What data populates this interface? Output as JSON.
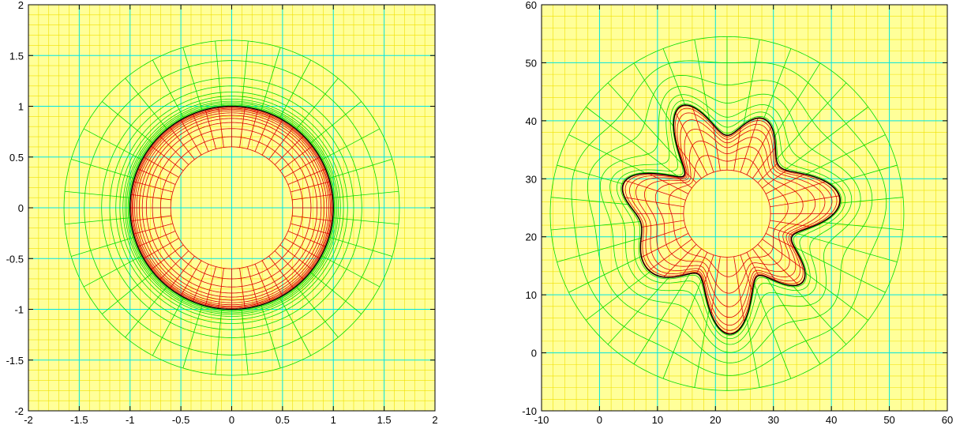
{
  "colors": {
    "background": "#ffffff",
    "plot_bg": "#ffff99",
    "minor_grid": "#f0e000",
    "major_grid": "#00e5e5",
    "inner_mesh": "#e00000",
    "outer_mesh": "#00dd00",
    "interface": "#000000"
  },
  "chart_data": [
    {
      "type": "mesh",
      "title": "",
      "xlabel": "",
      "ylabel": "",
      "xlim": [
        -2,
        2
      ],
      "ylim": [
        -2,
        2
      ],
      "xticks": [
        -2,
        -1.5,
        -1,
        -0.5,
        0,
        0.5,
        1,
        1.5,
        2
      ],
      "yticks": [
        -2,
        -1.5,
        -1,
        -0.5,
        0,
        0.5,
        1,
        1.5,
        2
      ],
      "xtick_labels": [
        "-2",
        "-1.5",
        "-1",
        "-0.5",
        "0",
        "0.5",
        "1",
        "1.5",
        "2"
      ],
      "ytick_labels": [
        "-2",
        "-1.5",
        "-1",
        "-0.5",
        "0",
        "0.5",
        "1",
        "1.5",
        "2"
      ],
      "minor_step": 0.1,
      "grid": true,
      "center": [
        0,
        0
      ],
      "interface_radius": 1.0,
      "inner_radii": [
        0.6,
        0.7,
        0.78,
        0.84,
        0.88,
        0.91,
        0.935,
        0.955,
        0.97,
        0.98,
        0.99
      ],
      "outer_radii": [
        1.01,
        1.02,
        1.035,
        1.05,
        1.07,
        1.1,
        1.14,
        1.2,
        1.28,
        1.45,
        1.65
      ],
      "inner_spokes": 48,
      "outer_spokes": 32,
      "interface_shape": {
        "amplitudes": [],
        "modes": [],
        "phases": []
      }
    },
    {
      "type": "mesh",
      "title": "",
      "xlabel": "",
      "ylabel": "",
      "xlim": [
        -10,
        60
      ],
      "ylim": [
        -10,
        60
      ],
      "xticks": [
        -10,
        0,
        10,
        20,
        30,
        40,
        50,
        60
      ],
      "yticks": [
        -10,
        0,
        10,
        20,
        30,
        40,
        50,
        60
      ],
      "xtick_labels": [
        "-10",
        "0",
        "10",
        "20",
        "30",
        "40",
        "50",
        "60"
      ],
      "ytick_labels": [
        "-10",
        "0",
        "10",
        "20",
        "30",
        "40",
        "50",
        "60"
      ],
      "minor_step": 2,
      "grid": true,
      "center": [
        22,
        24
      ],
      "interface_radius": 15.5,
      "inner_radius": 7.5,
      "outer_radius": 30.5,
      "inner_levels": 8,
      "outer_levels": 7,
      "inner_spokes": 40,
      "outer_spokes": 34,
      "interface_shape": {
        "amplitudes": [
          3.0,
          1.8,
          1.0
        ],
        "modes": [
          7,
          4,
          9
        ],
        "phases": [
          0.2,
          1.1,
          2.3
        ]
      }
    }
  ]
}
